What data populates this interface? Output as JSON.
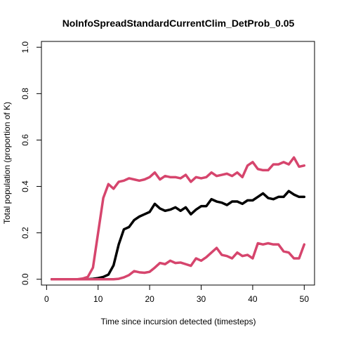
{
  "chart_data": {
    "type": "line",
    "title": "NoInfoSpreadStandardCurrentClim_DetProb_0.05",
    "xlabel": "Time since incursion detected (timesteps)",
    "ylabel": "Total population (proportion of K)",
    "xlim": [
      -1,
      52
    ],
    "ylim": [
      -0.025,
      1.025
    ],
    "xticks": [
      0,
      10,
      20,
      30,
      40,
      50
    ],
    "yticks": [
      0.0,
      0.2,
      0.4,
      0.6,
      0.8,
      1.0
    ],
    "xtick_labels": [
      "0",
      "10",
      "20",
      "30",
      "40",
      "50"
    ],
    "ytick_labels": [
      "0.0",
      "0.2",
      "0.4",
      "0.6",
      "0.8",
      "1.0"
    ],
    "grid": false,
    "colors": {
      "bound": "#D6456D",
      "mean": "#000000"
    },
    "x": [
      1,
      2,
      3,
      4,
      5,
      6,
      7,
      8,
      9,
      10,
      11,
      12,
      13,
      14,
      15,
      16,
      17,
      18,
      19,
      20,
      21,
      22,
      23,
      24,
      25,
      26,
      27,
      28,
      29,
      30,
      31,
      32,
      33,
      34,
      35,
      36,
      37,
      38,
      39,
      40,
      41,
      42,
      43,
      44,
      45,
      46,
      47,
      48,
      49,
      50
    ],
    "series": [
      {
        "role": "upper",
        "color": "#D6456D",
        "values": [
          0,
          0,
          0,
          0,
          0,
          0,
          0.003,
          0.01,
          0.05,
          0.2,
          0.35,
          0.41,
          0.39,
          0.42,
          0.425,
          0.435,
          0.43,
          0.425,
          0.43,
          0.44,
          0.46,
          0.43,
          0.445,
          0.44,
          0.44,
          0.435,
          0.45,
          0.42,
          0.44,
          0.435,
          0.44,
          0.46,
          0.445,
          0.45,
          0.455,
          0.445,
          0.46,
          0.44,
          0.49,
          0.505,
          0.475,
          0.47,
          0.47,
          0.495,
          0.495,
          0.505,
          0.495,
          0.525,
          0.485,
          0.49
        ]
      },
      {
        "role": "mean",
        "color": "#000000",
        "values": [
          0,
          0,
          0,
          0,
          0,
          0,
          0,
          0,
          0.002,
          0.005,
          0.01,
          0.02,
          0.06,
          0.15,
          0.215,
          0.225,
          0.255,
          0.27,
          0.28,
          0.29,
          0.325,
          0.305,
          0.295,
          0.3,
          0.31,
          0.295,
          0.31,
          0.28,
          0.3,
          0.315,
          0.315,
          0.345,
          0.335,
          0.33,
          0.32,
          0.335,
          0.335,
          0.325,
          0.34,
          0.34,
          0.355,
          0.37,
          0.35,
          0.345,
          0.355,
          0.355,
          0.38,
          0.365,
          0.355,
          0.355
        ]
      },
      {
        "role": "lower",
        "color": "#D6456D",
        "values": [
          0,
          0,
          0,
          0,
          0,
          0,
          0,
          0,
          0,
          0,
          0,
          0,
          0,
          0.002,
          0.008,
          0.018,
          0.035,
          0.03,
          0.028,
          0.032,
          0.05,
          0.07,
          0.065,
          0.08,
          0.07,
          0.072,
          0.065,
          0.058,
          0.09,
          0.08,
          0.095,
          0.115,
          0.135,
          0.105,
          0.1,
          0.09,
          0.115,
          0.1,
          0.105,
          0.09,
          0.155,
          0.15,
          0.155,
          0.15,
          0.15,
          0.12,
          0.115,
          0.09,
          0.09,
          0.15
        ]
      }
    ]
  }
}
